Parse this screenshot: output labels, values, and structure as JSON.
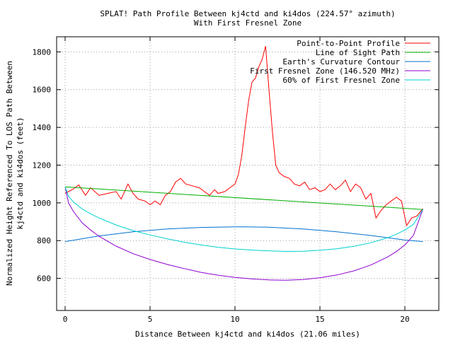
{
  "chart_data": {
    "type": "line",
    "title": "SPLAT! Path Profile Between kj4ctd and ki4dos (224.57° azimuth)",
    "subtitle": "With First Fresnel Zone",
    "xlabel": "Distance Between kj4ctd and ki4dos (21.06 miles)",
    "ylabel": [
      "Normalized Height Referenced To LOS Path Between",
      "kj4ctd and ki4dos (feet)"
    ],
    "xlim": [
      -0.5,
      22.0
    ],
    "ylim": [
      430,
      1880
    ],
    "xticks": [
      0,
      5,
      10,
      15,
      20
    ],
    "yticks": [
      600,
      800,
      1000,
      1200,
      1400,
      1600,
      1800
    ],
    "grid": true,
    "legend_position": "top-right",
    "series": [
      {
        "name": "Point-to-Point Profile",
        "color": "#ff0000",
        "x": [
          0,
          0.5,
          0.8,
          1.2,
          1.5,
          2.0,
          2.5,
          3.0,
          3.3,
          3.7,
          4.0,
          4.3,
          4.7,
          5.0,
          5.3,
          5.6,
          5.9,
          6.2,
          6.5,
          6.8,
          7.1,
          7.5,
          7.9,
          8.2,
          8.5,
          8.8,
          9.0,
          9.4,
          9.7,
          10.0,
          10.2,
          10.4,
          10.6,
          10.8,
          11.0,
          11.2,
          11.4,
          11.6,
          11.8,
          12.0,
          12.2,
          12.4,
          12.6,
          12.9,
          13.2,
          13.5,
          13.8,
          14.1,
          14.4,
          14.7,
          15.0,
          15.3,
          15.6,
          15.9,
          16.2,
          16.5,
          16.8,
          17.1,
          17.4,
          17.7,
          18.0,
          18.3,
          18.6,
          18.9,
          19.2,
          19.5,
          19.8,
          20.1,
          20.4,
          20.7,
          21.06
        ],
        "y": [
          1050,
          1075,
          1095,
          1040,
          1080,
          1040,
          1050,
          1060,
          1020,
          1100,
          1050,
          1020,
          1010,
          990,
          1010,
          990,
          1040,
          1060,
          1110,
          1130,
          1100,
          1090,
          1080,
          1060,
          1040,
          1070,
          1050,
          1060,
          1080,
          1100,
          1150,
          1250,
          1400,
          1540,
          1640,
          1660,
          1720,
          1760,
          1830,
          1600,
          1380,
          1200,
          1160,
          1140,
          1130,
          1100,
          1090,
          1110,
          1070,
          1080,
          1060,
          1070,
          1100,
          1070,
          1090,
          1120,
          1060,
          1100,
          1080,
          1020,
          1050,
          920,
          960,
          990,
          1010,
          1030,
          1010,
          880,
          920,
          930,
          970
        ]
      },
      {
        "name": "Line of Sight Path",
        "color": "#00b000",
        "x": [
          0,
          21.06
        ],
        "y": [
          1085,
          965
        ]
      },
      {
        "name": "Earth's Curvature Contour",
        "color": "#0070d0",
        "x": [
          0,
          2,
          4,
          6,
          8,
          10,
          10.53,
          12,
          14,
          16,
          18,
          20,
          21.06
        ],
        "y": [
          795,
          825,
          847,
          862,
          870,
          873,
          873,
          871,
          862,
          847,
          827,
          803,
          795
        ]
      },
      {
        "name": "First Fresnel Zone (146.520 MHz)",
        "color": "#9000d0",
        "x": [
          0,
          0.2,
          0.5,
          1,
          1.5,
          2,
          3,
          4,
          5,
          6,
          7,
          8,
          9,
          10,
          11,
          12,
          13,
          14,
          15,
          16,
          17,
          18,
          19,
          19.5,
          20,
          20.5,
          21.06
        ],
        "y": [
          1085,
          1000,
          953,
          895,
          856,
          823,
          771,
          731,
          700,
          674,
          652,
          632,
          617,
          605,
          597,
          592,
          590,
          594,
          603,
          618,
          640,
          671,
          714,
          742,
          777,
          827,
          965
        ]
      },
      {
        "name": "60% of First Fresnel Zone",
        "color": "#00d0d0",
        "x": [
          0,
          0.2,
          0.5,
          1,
          1.5,
          2,
          3,
          4,
          5,
          6,
          7,
          8,
          9,
          10,
          11,
          12,
          13,
          14,
          15,
          16,
          17,
          18,
          19,
          19.5,
          20,
          20.5,
          21.06
        ],
        "y": [
          1085,
          1035,
          1004,
          968,
          942,
          920,
          883,
          853,
          830,
          810,
          792,
          777,
          765,
          756,
          750,
          746,
          743,
          744,
          749,
          757,
          770,
          789,
          816,
          834,
          856,
          886,
          965
        ]
      }
    ]
  }
}
